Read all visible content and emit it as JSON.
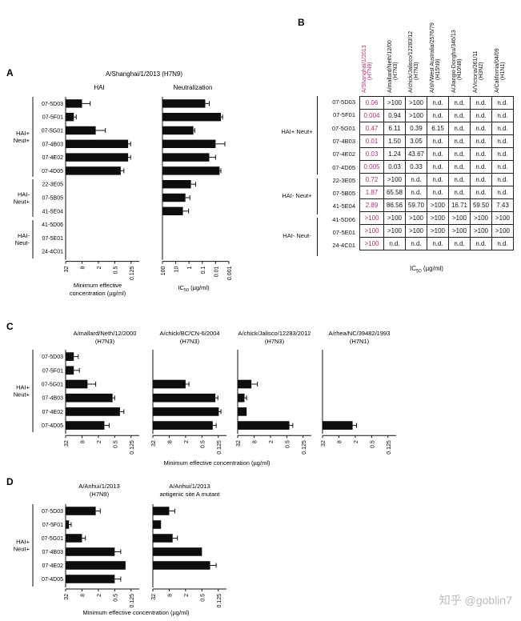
{
  "panels": {
    "A": {
      "letter": "A",
      "title": "A/Shanghai/1/2013 (H7N9)",
      "subtitles": [
        "HAI",
        "Neutralization"
      ],
      "xlabel_hai": "Minimum effective concentration (µg/ml)",
      "xlabel_neut": "IC50 (µg/ml)"
    },
    "B": {
      "letter": "B",
      "xlabel": "IC50 (µg/ml)",
      "columns": [
        {
          "name": "A/Shanghai/1/2013",
          "sub": "(H7N9)",
          "color": "#b0306e"
        },
        {
          "name": "A/mallard/Neth/12/00",
          "sub": "(H7N3)",
          "color": "#111111"
        },
        {
          "name": "A/chick/Jalisco/12283/12",
          "sub": "(H7N3)",
          "color": "#111111"
        },
        {
          "name": "A/sh/West Australia/2576/79",
          "sub": "(H15N9)",
          "color": "#111111"
        },
        {
          "name": "A/Jiangxi-Donghu/346/13",
          "sub": "(H10N8)",
          "color": "#111111"
        },
        {
          "name": "A/Victoria/361/11",
          "sub": "(H3N2)",
          "color": "#111111"
        },
        {
          "name": "A/California/04/09",
          "sub": "(H1N1)",
          "color": "#111111"
        }
      ],
      "rows": [
        {
          "label": "07-5D03",
          "cells": [
            "0.06",
            ">100",
            ">100",
            "n.d.",
            "n.d.",
            "n.d.",
            "n.d."
          ]
        },
        {
          "label": "07-5F01",
          "cells": [
            "0.004",
            "0.94",
            ">100",
            "n.d.",
            "n.d.",
            "n.d.",
            "n.d."
          ]
        },
        {
          "label": "07-5G01",
          "cells": [
            "0.47",
            "6.11",
            "0.39",
            "6.15",
            "n.d.",
            "n.d.",
            "n.d."
          ]
        },
        {
          "label": "07-4B03",
          "cells": [
            "0.01",
            "1.50",
            "3.05",
            "n.d.",
            "n.d.",
            "n.d.",
            "n.d."
          ]
        },
        {
          "label": "07-4E02",
          "cells": [
            "0.03",
            "1.24",
            "43.67",
            "n.d.",
            "n.d.",
            "n.d.",
            "n.d."
          ]
        },
        {
          "label": "07-4D05",
          "cells": [
            "0.005",
            "0.03",
            "0.33",
            "n.d.",
            "n.d.",
            "n.d.",
            "n.d."
          ]
        },
        {
          "label": "22-3E05",
          "cells": [
            "0.72",
            ">100",
            "n.d.",
            "n.d.",
            "n.d.",
            "n.d.",
            "n.d."
          ]
        },
        {
          "label": "07-5B05",
          "cells": [
            "1.87",
            "65.58",
            "n.d.",
            "n.d.",
            "n.d.",
            "n.d.",
            "n.d."
          ]
        },
        {
          "label": "41-5E04",
          "cells": [
            "2.89",
            "86.56",
            "59.70",
            ">100",
            "16.71",
            "59.50",
            "7.43"
          ]
        },
        {
          "label": "41-5D06",
          "cells": [
            ">100",
            ">100",
            ">100",
            ">100",
            ">100",
            ">100",
            ">100"
          ]
        },
        {
          "label": "07-5E01",
          "cells": [
            ">100",
            ">100",
            ">100",
            ">100",
            ">100",
            ">100",
            ">100"
          ]
        },
        {
          "label": "24-4C01",
          "cells": [
            ">100",
            "n.d.",
            "n.d.",
            "n.d.",
            "n.d.",
            "n.d.",
            "n.d."
          ]
        }
      ]
    },
    "C": {
      "letter": "C",
      "titles": [
        [
          "A/mallard/Neth/12/2000",
          "(H7N3)"
        ],
        [
          "A/chick/BC/CN-6/2004",
          "(H7N3)"
        ],
        [
          "A/chick/Jalisco/12283/2012",
          "(H7N3)"
        ],
        [
          "A/rhea/NC/39482/1993",
          "(H7N1)"
        ]
      ],
      "xlabel": "Minimum effective concentration (µg/ml)"
    },
    "D": {
      "letter": "D",
      "titles": [
        [
          "A/Anhui/1/2013",
          "(H7N9)"
        ],
        [
          "A/Anhui/1/2013",
          "antigenic site A mutant"
        ]
      ],
      "xlabel": "Minimum effective concentration (µg/ml)"
    }
  },
  "groups": [
    "HAI+ Neut+",
    "HAI- Neut+",
    "HAI- Neut-"
  ],
  "watermark": "知乎 @goblin7",
  "chart_data": [
    {
      "id": "A-HAI",
      "type": "bar",
      "orientation": "horizontal",
      "log_scale": true,
      "reversed_axis": true,
      "title": "HAI",
      "xlabel": "Minimum effective concentration (µg/ml)",
      "tick_labels": [
        "32",
        "8",
        "2",
        "0.5",
        "0.125"
      ],
      "xlim": [
        32,
        0.0625
      ],
      "categories": [
        "07-5D03",
        "07-5F01",
        "07-5G01",
        "07-4B03",
        "07-4E02",
        "07-4D05",
        "22-3E05",
        "07-5B05",
        "41-5E04",
        "41-5D06",
        "07-5E01",
        "24-4C01"
      ],
      "values": [
        8,
        16,
        2.5,
        0.16,
        0.16,
        0.3,
        null,
        null,
        null,
        null,
        null,
        null
      ],
      "errors": [
        4,
        3,
        1.4,
        0.03,
        0.03,
        0.07,
        null,
        null,
        null,
        null,
        null,
        null
      ]
    },
    {
      "id": "A-Neut",
      "type": "bar",
      "orientation": "horizontal",
      "log_scale": true,
      "reversed_axis": true,
      "title": "Neutralization",
      "xlabel": "IC50 (µg/ml)",
      "tick_labels": [
        "100",
        "10",
        "1",
        "0.1",
        "0.01",
        "0.001"
      ],
      "xlim": [
        100,
        0.001
      ],
      "categories": [
        "07-5D03",
        "07-5F01",
        "07-5G01",
        "07-4B03",
        "07-4E02",
        "07-4D05",
        "22-3E05",
        "07-5B05",
        "41-5E04",
        "41-5D06",
        "07-5E01",
        "24-4C01"
      ],
      "values": [
        0.06,
        0.004,
        0.47,
        0.01,
        0.03,
        0.005,
        0.72,
        1.87,
        2.89,
        null,
        null,
        null
      ],
      "errors": [
        0.03,
        0.001,
        0.1,
        0.008,
        0.02,
        0.001,
        0.4,
        1.0,
        1.8,
        null,
        null,
        null
      ]
    },
    {
      "id": "C-mallard",
      "type": "bar",
      "orientation": "horizontal",
      "log_scale": true,
      "reversed_axis": true,
      "title": "A/mallard/Neth/12/2000 (H7N3)",
      "tick_labels": [
        "32",
        "8",
        "2",
        "0.5",
        "0.125"
      ],
      "xlim": [
        32,
        0.0625
      ],
      "categories": [
        "07-5D03",
        "07-5F01",
        "07-5G01",
        "07-4B03",
        "07-4E02",
        "07-4D05"
      ],
      "values": [
        16,
        16,
        5,
        0.6,
        0.32,
        1.2
      ],
      "errors": [
        5,
        6,
        2.5,
        0.1,
        0.09,
        0.4
      ]
    },
    {
      "id": "C-chickBC",
      "type": "bar",
      "orientation": "horizontal",
      "log_scale": true,
      "reversed_axis": true,
      "title": "A/chick/BC/CN-6/2004 (H7N3)",
      "tick_labels": [
        "32",
        "8",
        "2",
        "0.5",
        "0.125"
      ],
      "xlim": [
        32,
        0.0625
      ],
      "categories": [
        "07-5D03",
        "07-5F01",
        "07-5G01",
        "07-4B03",
        "07-4E02",
        "07-4D05"
      ],
      "values": [
        null,
        null,
        2,
        0.16,
        0.12,
        0.2
      ],
      "errors": [
        null,
        null,
        0.5,
        0.03,
        0.02,
        0.05
      ]
    },
    {
      "id": "C-chickJalisco",
      "type": "bar",
      "orientation": "horizontal",
      "log_scale": true,
      "reversed_axis": true,
      "title": "A/chick/Jalisco/12283/2012 (H7N3)",
      "tick_labels": [
        "32",
        "8",
        "2",
        "0.5",
        "0.125"
      ],
      "xlim": [
        32,
        0.0625
      ],
      "categories": [
        "07-5D03",
        "07-5F01",
        "07-5G01",
        "07-4B03",
        "07-4E02",
        "07-4D05"
      ],
      "values": [
        null,
        null,
        10,
        18,
        15,
        0.4
      ],
      "errors": [
        null,
        null,
        4,
        3,
        null,
        0.1
      ]
    },
    {
      "id": "C-rhea",
      "type": "bar",
      "orientation": "horizontal",
      "log_scale": true,
      "reversed_axis": true,
      "title": "A/rhea/NC/39482/1993 (H7N1)",
      "tick_labels": [
        "32",
        "8",
        "2",
        "0.5",
        "0.125"
      ],
      "xlim": [
        32,
        0.0625
      ],
      "categories": [
        "07-5D03",
        "07-5F01",
        "07-5G01",
        "07-4B03",
        "07-4E02",
        "07-4D05"
      ],
      "values": [
        null,
        null,
        null,
        null,
        null,
        2.5
      ],
      "errors": [
        null,
        null,
        null,
        null,
        null,
        0.7
      ]
    },
    {
      "id": "D-Anhui",
      "type": "bar",
      "orientation": "horizontal",
      "log_scale": true,
      "reversed_axis": true,
      "title": "A/Anhui/1/2013 (H7N9)",
      "tick_labels": [
        "32",
        "8",
        "2",
        "0.5",
        "0.125"
      ],
      "xlim": [
        32,
        0.0625
      ],
      "categories": [
        "07-5D03",
        "07-5F01",
        "07-5G01",
        "07-4B03",
        "07-4E02",
        "07-4D05"
      ],
      "values": [
        2.5,
        24,
        8,
        0.5,
        0.2,
        0.5
      ],
      "errors": [
        0.8,
        4,
        2,
        0.2,
        null,
        0.2
      ]
    },
    {
      "id": "D-Anhui-mutant",
      "type": "bar",
      "orientation": "horizontal",
      "log_scale": true,
      "reversed_axis": true,
      "title": "A/Anhui/1/2013 antigenic site A mutant",
      "tick_labels": [
        "32",
        "8",
        "2",
        "0.5",
        "0.125"
      ],
      "xlim": [
        32,
        0.0625
      ],
      "categories": [
        "07-5D03",
        "07-5F01",
        "07-5G01",
        "07-4B03",
        "07-4E02",
        "07-4D05"
      ],
      "values": [
        8,
        16,
        6,
        0.5,
        0.25,
        null
      ],
      "errors": [
        3,
        null,
        2,
        null,
        0.1,
        null
      ]
    }
  ]
}
